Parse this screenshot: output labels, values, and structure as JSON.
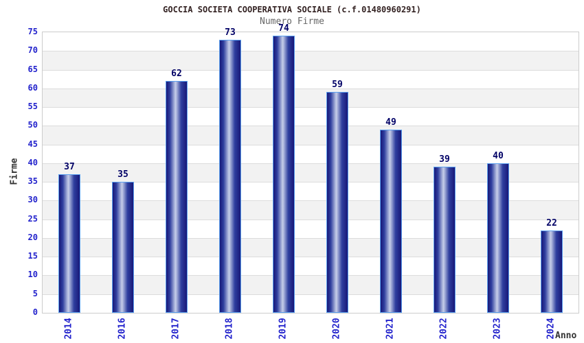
{
  "chart_data": {
    "type": "bar",
    "title": "GOCCIA SOCIETA COOPERATIVA SOCIALE (c.f.01480960291)",
    "subtitle": "Numero Firme",
    "xlabel": "Anno",
    "ylabel": "Firme",
    "categories": [
      "2014",
      "2016",
      "2017",
      "2018",
      "2019",
      "2020",
      "2021",
      "2022",
      "2023",
      "2024"
    ],
    "values": [
      37,
      35,
      62,
      73,
      74,
      59,
      49,
      39,
      40,
      22
    ],
    "ylim": [
      0,
      75
    ],
    "ytick_step": 5,
    "grid": "horizontal-bands-alternating",
    "legend": "none",
    "colors": {
      "title_text": "#332222",
      "subtitle_text": "#666666",
      "axis_title_text": "#333333",
      "tick_label_blue": "#2222cc",
      "bar_value_navy": "#000066",
      "bar_edge_dark": "#181878",
      "bar_mid_light": "#c7cfe9",
      "bar_outline": "#5aa0f0",
      "band_gray": "#f2f2f2",
      "gridline": "#dcdcdc",
      "plot_border": "#cccccc",
      "background": "#ffffff"
    }
  }
}
